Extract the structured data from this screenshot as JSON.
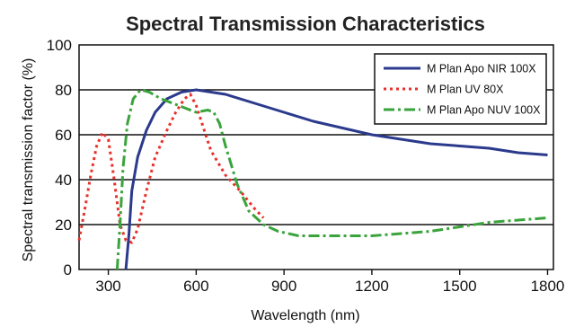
{
  "chart_data": {
    "type": "line",
    "title": "Spectral Transmission Characteristics",
    "xlabel": "Wavelength (nm)",
    "ylabel": "Spectral transmission factor (%)",
    "xlim": [
      200,
      1820
    ],
    "ylim": [
      0,
      100
    ],
    "x_ticks": [
      300,
      600,
      900,
      1200,
      1500,
      1800
    ],
    "y_ticks": [
      0,
      20,
      40,
      60,
      80,
      100
    ],
    "grid": "horizontal",
    "legend_position": "top-right",
    "series": [
      {
        "name": "M Plan Apo NIR 100X",
        "color": "#2b3a8c",
        "style": "solid",
        "points": [
          [
            360,
            0
          ],
          [
            370,
            15
          ],
          [
            380,
            35
          ],
          [
            400,
            50
          ],
          [
            430,
            62
          ],
          [
            460,
            70
          ],
          [
            500,
            76
          ],
          [
            550,
            79
          ],
          [
            600,
            80
          ],
          [
            650,
            79
          ],
          [
            700,
            78
          ],
          [
            800,
            74
          ],
          [
            900,
            70
          ],
          [
            1000,
            66
          ],
          [
            1100,
            63
          ],
          [
            1200,
            60
          ],
          [
            1300,
            58
          ],
          [
            1400,
            56
          ],
          [
            1500,
            55
          ],
          [
            1600,
            54
          ],
          [
            1700,
            52
          ],
          [
            1800,
            51
          ]
        ]
      },
      {
        "name": "M Plan UV 80X",
        "color": "#e8302a",
        "style": "dotted",
        "points": [
          [
            200,
            13
          ],
          [
            220,
            27
          ],
          [
            240,
            42
          ],
          [
            260,
            55
          ],
          [
            280,
            61
          ],
          [
            300,
            58
          ],
          [
            320,
            40
          ],
          [
            340,
            20
          ],
          [
            360,
            13
          ],
          [
            380,
            12
          ],
          [
            400,
            18
          ],
          [
            430,
            35
          ],
          [
            460,
            50
          ],
          [
            500,
            62
          ],
          [
            530,
            70
          ],
          [
            560,
            76
          ],
          [
            580,
            78
          ],
          [
            600,
            73
          ],
          [
            620,
            65
          ],
          [
            650,
            53
          ],
          [
            700,
            42
          ],
          [
            750,
            35
          ],
          [
            800,
            27
          ],
          [
            830,
            23
          ]
        ]
      },
      {
        "name": "M Plan Apo NUV 100X",
        "color": "#3aa43c",
        "style": "dashdot",
        "points": [
          [
            330,
            0
          ],
          [
            340,
            20
          ],
          [
            350,
            45
          ],
          [
            365,
            65
          ],
          [
            385,
            76
          ],
          [
            410,
            80
          ],
          [
            440,
            79
          ],
          [
            480,
            76
          ],
          [
            520,
            74
          ],
          [
            560,
            72
          ],
          [
            600,
            70
          ],
          [
            640,
            71
          ],
          [
            660,
            70
          ],
          [
            680,
            65
          ],
          [
            700,
            55
          ],
          [
            740,
            38
          ],
          [
            780,
            26
          ],
          [
            830,
            20
          ],
          [
            880,
            17
          ],
          [
            950,
            15
          ],
          [
            1100,
            15
          ],
          [
            1200,
            15
          ],
          [
            1300,
            16
          ],
          [
            1400,
            17
          ],
          [
            1500,
            19
          ],
          [
            1600,
            21
          ],
          [
            1700,
            22
          ],
          [
            1800,
            23
          ]
        ]
      }
    ]
  }
}
